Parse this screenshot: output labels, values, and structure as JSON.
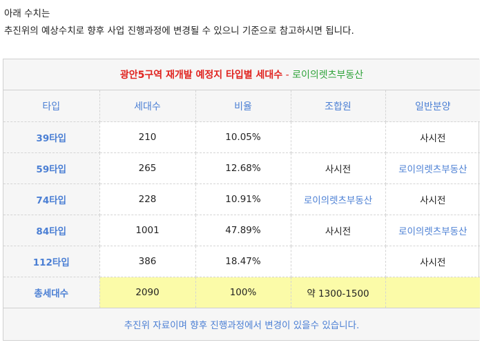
{
  "intro": {
    "line1": "아래 수치는",
    "line2": "추진위의 예상수치로 향후 사업 진행과정에 변경될 수 있으니 기준으로 참고하시면 됩니다."
  },
  "table": {
    "title_main": "광안5구역 재개발 예정지 타입별 세대수",
    "title_sep": " - ",
    "title_sub": "로이의렛츠부동산",
    "headers": [
      "타입",
      "세대수",
      "비율",
      "조합원",
      "일반분양"
    ],
    "rows": [
      {
        "type": "39타입",
        "units": "210",
        "ratio": "10.05%",
        "member": "",
        "general": "사시전"
      },
      {
        "type": "59타입",
        "units": "265",
        "ratio": "12.68%",
        "member": "사시전",
        "general": "로이의렛츠부동산"
      },
      {
        "type": "74타입",
        "units": "228",
        "ratio": "10.91%",
        "member": "로이의렛츠부동산",
        "general": "사시전"
      },
      {
        "type": "84타입",
        "units": "1001",
        "ratio": "47.89%",
        "member": "사시전",
        "general": "로이의렛츠부동산"
      },
      {
        "type": "112타입",
        "units": "386",
        "ratio": "18.47%",
        "member": "",
        "general": "사시전"
      }
    ],
    "total": {
      "label": "총세대수",
      "units": "2090",
      "ratio": "100%",
      "member": "약 1300-1500",
      "general": ""
    },
    "note": "추진위 자료이며 향후 진행과정에서 변경이 있을수 있습니다."
  },
  "colors": {
    "title_red": "#e0221e",
    "title_green": "#2fa33a",
    "accent_blue": "#4b7fd4",
    "highlight_yellow": "#fbfba8",
    "header_gray": "#f6f6f6"
  }
}
